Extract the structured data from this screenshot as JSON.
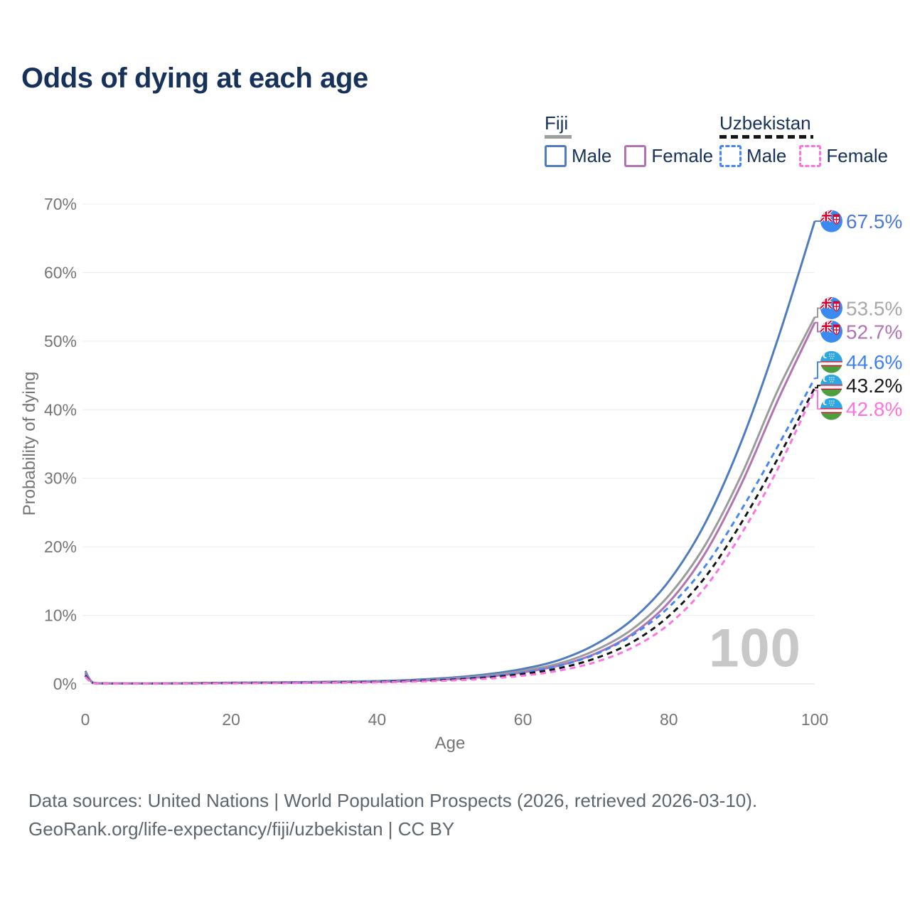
{
  "title": "Odds of dying at each age",
  "legend": {
    "groups": [
      {
        "label": "Fiji",
        "line_style": "solid",
        "underline_color": "#9e9e9e",
        "items": [
          {
            "label": "Male",
            "color": "#4f7cbe"
          },
          {
            "label": "Female",
            "color": "#b273b2"
          }
        ]
      },
      {
        "label": "Uzbekistan",
        "line_style": "dashed",
        "underline_color": "#161616",
        "items": [
          {
            "label": "Male",
            "color": "#4487f5"
          },
          {
            "label": "Female",
            "color": "#fb74e2"
          }
        ]
      }
    ]
  },
  "chart_data": {
    "type": "line",
    "title": "Odds of dying at each age",
    "xlabel": "Age",
    "ylabel": "Probability of dying",
    "xlim": [
      0,
      100
    ],
    "ylim": [
      0,
      70
    ],
    "x_ticks": [
      0,
      20,
      40,
      60,
      80,
      100
    ],
    "y_ticks": [
      0,
      10,
      20,
      30,
      40,
      50,
      60,
      70
    ],
    "y_tick_suffix": "%",
    "grid": "horizontal",
    "legend_position": "top-right",
    "watermark": "100",
    "x": [
      0,
      1,
      3,
      5,
      10,
      15,
      20,
      25,
      30,
      35,
      40,
      45,
      50,
      55,
      60,
      65,
      70,
      75,
      80,
      85,
      90,
      95,
      100
    ],
    "series": [
      {
        "name": "Fiji Male",
        "country": "Fiji",
        "sex": "Male",
        "flag": "fiji",
        "dash": "solid",
        "color": "#4f7cbe",
        "label_color": "#4b79d8",
        "end_label": "67.5%",
        "values": [
          1.9,
          0.25,
          0.1,
          0.08,
          0.08,
          0.12,
          0.18,
          0.22,
          0.27,
          0.33,
          0.42,
          0.6,
          0.9,
          1.4,
          2.2,
          3.5,
          5.8,
          9.4,
          15.0,
          23.5,
          35.5,
          50.5,
          67.5
        ]
      },
      {
        "name": "Fiji Both sexes",
        "country": "Fiji",
        "sex": "Both",
        "flag": "fiji",
        "dash": "solid",
        "color": "#9b9b9b",
        "label_color": "#a8a8a8",
        "end_label": "53.5%",
        "values": [
          1.7,
          0.22,
          0.09,
          0.07,
          0.07,
          0.1,
          0.15,
          0.18,
          0.22,
          0.28,
          0.36,
          0.5,
          0.78,
          1.2,
          1.9,
          3.0,
          4.95,
          8.0,
          12.9,
          20.3,
          30.6,
          43.0,
          53.5
        ]
      },
      {
        "name": "Fiji Female",
        "country": "Fiji",
        "sex": "Female",
        "flag": "fiji",
        "dash": "solid",
        "color": "#b273b2",
        "label_color": "#b273b2",
        "end_label": "52.7%",
        "values": [
          1.55,
          0.2,
          0.08,
          0.06,
          0.06,
          0.09,
          0.12,
          0.15,
          0.18,
          0.24,
          0.31,
          0.44,
          0.68,
          1.05,
          1.68,
          2.7,
          4.45,
          7.3,
          11.9,
          19.1,
          29.3,
          41.5,
          52.7
        ]
      },
      {
        "name": "Uzbekistan Male",
        "country": "Uzbekistan",
        "sex": "Male",
        "flag": "uzbekistan",
        "dash": "dashed",
        "color": "#4487f5",
        "label_color": "#3f80f2",
        "end_label": "44.6%",
        "values": [
          1.35,
          0.18,
          0.08,
          0.06,
          0.06,
          0.09,
          0.13,
          0.16,
          0.2,
          0.26,
          0.34,
          0.47,
          0.7,
          1.05,
          1.65,
          2.65,
          4.35,
          7.1,
          11.2,
          17.2,
          25.5,
          34.8,
          44.6
        ]
      },
      {
        "name": "Uzbekistan Both sexes",
        "country": "Uzbekistan",
        "sex": "Both",
        "flag": "uzbekistan",
        "dash": "dashed",
        "color": "#161616",
        "label_color": "#1a1a1a",
        "end_label": "43.2%",
        "values": [
          1.2,
          0.16,
          0.07,
          0.05,
          0.05,
          0.08,
          0.11,
          0.14,
          0.17,
          0.22,
          0.29,
          0.41,
          0.61,
          0.92,
          1.45,
          2.3,
          3.75,
          6.1,
          9.9,
          15.6,
          23.6,
          33.0,
          43.2
        ]
      },
      {
        "name": "Uzbekistan Female",
        "country": "Uzbekistan",
        "sex": "Female",
        "flag": "uzbekistan",
        "dash": "dashed",
        "color": "#fb74e2",
        "label_color": "#fb74e2",
        "end_label": "42.8%",
        "values": [
          1.05,
          0.14,
          0.06,
          0.04,
          0.04,
          0.06,
          0.08,
          0.1,
          0.13,
          0.17,
          0.23,
          0.33,
          0.5,
          0.76,
          1.2,
          1.95,
          3.2,
          5.3,
          8.7,
          14.1,
          22.0,
          31.5,
          42.8
        ]
      }
    ]
  },
  "footer": {
    "line1": "Data sources: United Nations | World Population Prospects (2026, retrieved 2026-03-10).",
    "line2": "GeoRank.org/life-expectancy/fiji/uzbekistan | CC BY"
  }
}
